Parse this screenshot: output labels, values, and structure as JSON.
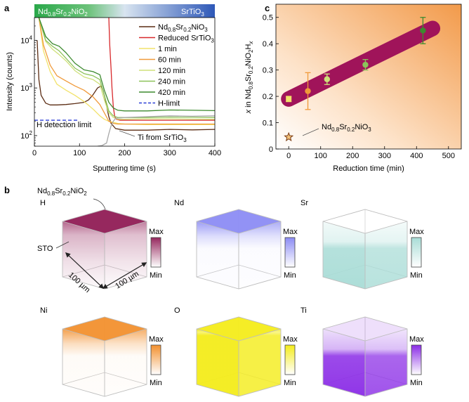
{
  "panel_labels": {
    "a": "a",
    "b": "b",
    "c": "c"
  },
  "chart_data": [
    {
      "type": "line",
      "panel": "a",
      "xlabel": "Sputtering time (s)",
      "ylabel": "Intensity (counts)",
      "xlim": [
        0,
        400
      ],
      "ylim_log": [
        60,
        30000
      ],
      "xticks": [
        "0",
        "100",
        "200",
        "300",
        "400"
      ],
      "yticks": [
        {
          "base": "10",
          "exp": "2"
        },
        {
          "base": "10",
          "exp": "3"
        },
        {
          "base": "10",
          "exp": "4"
        }
      ],
      "banner": {
        "left": {
          "pre": "Nd",
          "s1": "0.8",
          "mid": "Sr",
          "s2": "0.2",
          "post": "NiO",
          "s3": "2"
        },
        "right": "SrTiO",
        "right_sub": "3"
      },
      "legend": [
        {
          "label": "Nd0.8Sr0.2NiO3",
          "color": "#5a2b12",
          "dash": false
        },
        {
          "label": "Reduced SrTiO3",
          "color": "#d8282b",
          "dash": false
        },
        {
          "label": "1 min",
          "color": "#f2e26a",
          "dash": false
        },
        {
          "label": "60 min",
          "color": "#f09a3a",
          "dash": false
        },
        {
          "label": "120 min",
          "color": "#cfe07a",
          "dash": false
        },
        {
          "label": "240 min",
          "color": "#8cc25a",
          "dash": false
        },
        {
          "label": "420 min",
          "color": "#3d8a2f",
          "dash": false
        },
        {
          "label": "H-limit",
          "color": "#2b3fd6",
          "dash": true
        }
      ],
      "annotations": {
        "h_detection": "H detection limit",
        "ti_from": "Ti from SrTiO",
        "ti_sub": "3"
      },
      "series": [
        {
          "name": "Nd0.8Sr0.2NiO3",
          "color": "#5a2b12",
          "x": [
            6,
            10,
            15,
            25,
            35,
            50,
            70,
            90,
            110,
            120,
            130,
            140,
            148,
            152,
            156,
            160,
            165,
            170,
            180,
            200,
            250,
            300,
            350,
            400
          ],
          "y": [
            10000,
            1500,
            700,
            480,
            440,
            440,
            450,
            470,
            500,
            560,
            720,
            1000,
            1100,
            900,
            650,
            420,
            250,
            180,
            140,
            130,
            130,
            135,
            132,
            135
          ]
        },
        {
          "name": "Reduced SrTiO3",
          "color": "#d8282b",
          "x": [
            165,
            167,
            170,
            172,
            175,
            178,
            182,
            190,
            200,
            250,
            300,
            400
          ],
          "y": [
            30000,
            8000,
            2500,
            1000,
            400,
            250,
            220,
            210,
            210,
            210,
            210,
            210
          ]
        },
        {
          "name": "1 min",
          "color": "#f2e26a",
          "x": [
            10,
            20,
            35,
            50,
            70,
            90,
            110,
            130,
            145,
            155,
            165,
            175,
            185,
            200,
            250,
            300,
            350,
            400
          ],
          "y": [
            30000,
            6000,
            2200,
            1200,
            900,
            700,
            520,
            360,
            260,
            220,
            200,
            190,
            180,
            175,
            170,
            170,
            170,
            170
          ]
        },
        {
          "name": "60 min",
          "color": "#f09a3a",
          "x": [
            10,
            20,
            35,
            50,
            70,
            90,
            110,
            130,
            145,
            155,
            165,
            175,
            185,
            200,
            250,
            300,
            350,
            400
          ],
          "y": [
            30000,
            8000,
            3000,
            1800,
            1400,
            1100,
            900,
            650,
            450,
            300,
            200,
            180,
            175,
            175,
            175,
            175,
            175,
            175
          ]
        },
        {
          "name": "120 min",
          "color": "#cfe07a",
          "x": [
            10,
            25,
            40,
            55,
            70,
            90,
            110,
            130,
            145,
            155,
            165,
            175,
            185,
            200,
            250,
            300,
            350,
            400
          ],
          "y": [
            30000,
            9500,
            6500,
            5000,
            3700,
            2300,
            1700,
            1500,
            1200,
            560,
            300,
            240,
            220,
            220,
            225,
            225,
            222,
            220
          ]
        },
        {
          "name": "240 min",
          "color": "#8cc25a",
          "x": [
            10,
            25,
            40,
            55,
            70,
            90,
            110,
            130,
            145,
            155,
            165,
            175,
            185,
            200,
            250,
            300,
            350,
            400
          ],
          "y": [
            30000,
            10000,
            7500,
            6000,
            4200,
            2600,
            2000,
            1800,
            1500,
            700,
            330,
            260,
            240,
            240,
            240,
            245,
            242,
            240
          ]
        },
        {
          "name": "420 min",
          "color": "#3d8a2f",
          "x": [
            10,
            25,
            40,
            55,
            70,
            90,
            110,
            130,
            145,
            155,
            165,
            175,
            185,
            200,
            250,
            300,
            350,
            400
          ],
          "y": [
            30000,
            12000,
            8500,
            7500,
            5500,
            3300,
            2400,
            2200,
            1900,
            900,
            500,
            380,
            340,
            330,
            330,
            345,
            340,
            335
          ]
        },
        {
          "name": "Ti from SrTiO3",
          "color": "#a8a8a8",
          "x": [
            140,
            150,
            160,
            165,
            170,
            175,
            180,
            200,
            250,
            300,
            350,
            400
          ],
          "y": [
            60,
            62,
            70,
            110,
            160,
            200,
            230,
            240,
            250,
            260,
            255,
            260
          ]
        }
      ],
      "h_limit": {
        "x": [
          0,
          95
        ],
        "y": 210
      }
    },
    {
      "type": "scatter",
      "panel": "c",
      "xlabel": "Reduction time (min)",
      "ylabel": "x in Nd0.8Sr0.2NiO2Hx",
      "xlim": [
        -40,
        540
      ],
      "ylim": [
        0,
        0.55
      ],
      "xticks": [
        "0",
        "100",
        "200",
        "300",
        "400",
        "500"
      ],
      "yticks": [
        "0",
        "0.1",
        "0.2",
        "0.3",
        "0.4",
        "0.5"
      ],
      "points": [
        {
          "x": 0,
          "y": 0.19,
          "err": 0.01,
          "color": "#f2e26a"
        },
        {
          "x": 60,
          "y": 0.22,
          "err": 0.07,
          "color": "#f09a3a"
        },
        {
          "x": 120,
          "y": 0.265,
          "err": 0.02,
          "color": "#cfe07a"
        },
        {
          "x": 240,
          "y": 0.32,
          "err": 0.02,
          "color": "#8cc25a"
        },
        {
          "x": 420,
          "y": 0.45,
          "err": 0.05,
          "color": "#3d8a2f"
        }
      ],
      "reference": {
        "x": 0,
        "y": 0.045,
        "label_pre": "Nd",
        "s1": "0.8",
        "mid": "Sr",
        "s2": "0.2",
        "post": "NiO",
        "s3": "3"
      },
      "trend": {
        "x0": 0,
        "y0": 0.19,
        "x1": 450,
        "y1": 0.458,
        "color": "#a0145a"
      }
    }
  ],
  "panel_b": {
    "top_label": {
      "pre": "Nd",
      "s1": "0.8",
      "mid": "Sr",
      "s2": "0.2",
      "post": "NiO",
      "s3": "2"
    },
    "sto_label": "STO",
    "dim1": "100 µm",
    "dim2": "100 µm",
    "max_label": "Max",
    "min_label": "Min",
    "cubes": [
      {
        "element": "H",
        "color": "#96285e",
        "mode": "H"
      },
      {
        "element": "Nd",
        "color": "#8c8cf4",
        "mode": "top"
      },
      {
        "element": "Sr",
        "color": "#a8dcd6",
        "mode": "bottom"
      },
      {
        "element": "Ni",
        "color": "#f2902e",
        "mode": "top"
      },
      {
        "element": "O",
        "color": "#f4ec1a",
        "mode": "full"
      },
      {
        "element": "Ti",
        "color": "#8a2be6",
        "mode": "bottom"
      }
    ]
  }
}
